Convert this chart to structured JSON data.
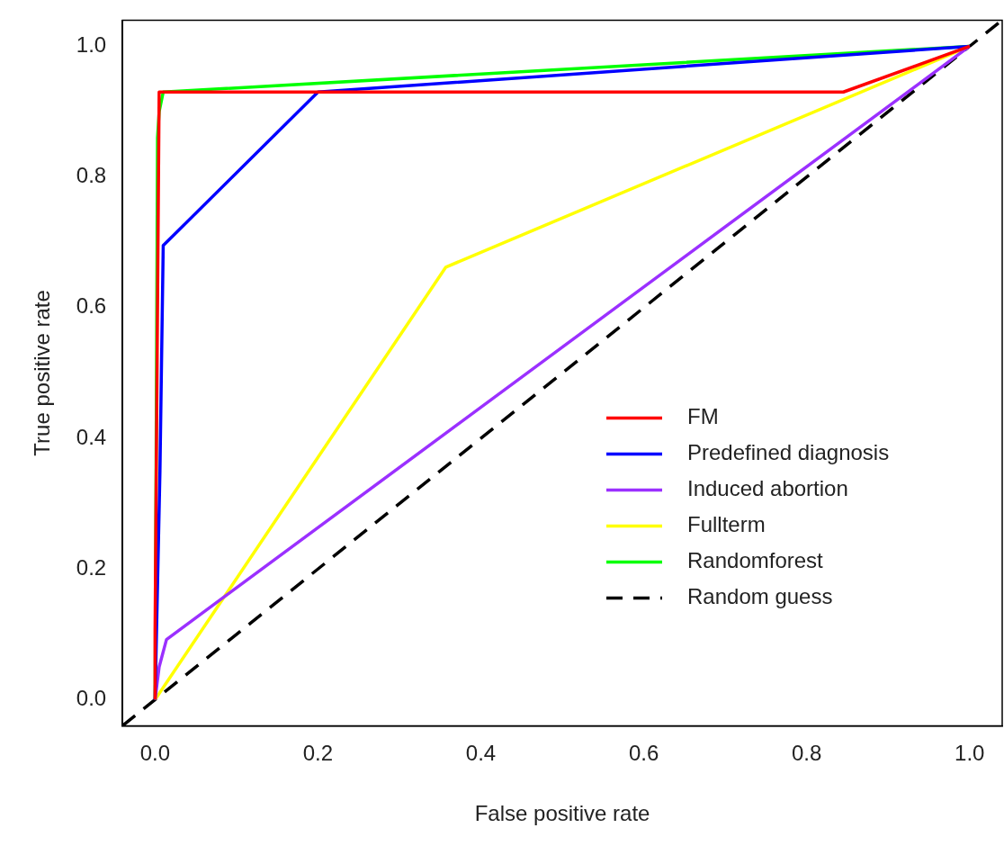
{
  "chart_data": {
    "type": "line",
    "xlabel": "False positive rate",
    "ylabel": "True positive rate",
    "xlim": [
      -0.04,
      1.04
    ],
    "ylim": [
      -0.04,
      1.04
    ],
    "xticks": [
      {
        "value": 0,
        "label": "0.0"
      },
      {
        "value": 0.2,
        "label": "0.2"
      },
      {
        "value": 0.4,
        "label": "0.4"
      },
      {
        "value": 0.6,
        "label": "0.6"
      },
      {
        "value": 0.8,
        "label": "0.8"
      },
      {
        "value": 1,
        "label": "1.0"
      }
    ],
    "yticks": [
      {
        "value": 0,
        "label": "0.0"
      },
      {
        "value": 0.2,
        "label": "0.2"
      },
      {
        "value": 0.4,
        "label": "0.4"
      },
      {
        "value": 0.6,
        "label": "0.6"
      },
      {
        "value": 0.8,
        "label": "0.8"
      },
      {
        "value": 1,
        "label": "1.0"
      }
    ],
    "grid": false,
    "legend": "right",
    "marker": "none",
    "series": [
      {
        "name": "FM",
        "color": "#ff0000",
        "x": [
          0,
          0,
          0.005,
          0.845,
          1
        ],
        "values": [
          0,
          0.11,
          0.93,
          0.93,
          1
        ]
      },
      {
        "name": "Predefined diagnosis",
        "color": "#0000ff",
        "x": [
          0,
          0.006,
          0.01,
          0.2,
          1
        ],
        "values": [
          0,
          0.35,
          0.695,
          0.93,
          1
        ]
      },
      {
        "name": "Induced abortion",
        "color": "#9b30ff",
        "x": [
          0,
          0.005,
          0.014,
          1
        ],
        "values": [
          0,
          0.05,
          0.092,
          1
        ]
      },
      {
        "name": "Fullterm",
        "color": "#ffff00",
        "x": [
          0,
          0.357,
          1
        ],
        "values": [
          0,
          0.662,
          1
        ]
      },
      {
        "name": "Randomforest",
        "color": "#00ff00",
        "x": [
          0,
          0.003,
          0.005,
          0.01,
          1
        ],
        "values": [
          0,
          0.86,
          0.9,
          0.93,
          1
        ]
      },
      {
        "name": "Random guess",
        "color": "#000000",
        "line_style": "dashed",
        "x": [
          -0.04,
          1.04
        ],
        "values": [
          -0.04,
          1.04
        ]
      }
    ]
  }
}
